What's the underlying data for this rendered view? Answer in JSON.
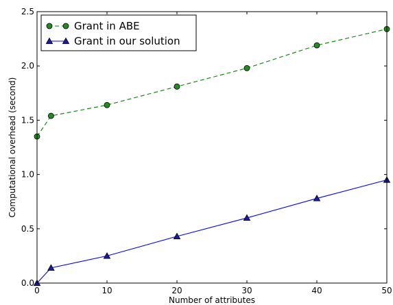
{
  "chart_data": {
    "type": "line",
    "title": "",
    "xlabel": "Number of attributes",
    "ylabel": "Computational overhead (second)",
    "xlim": [
      0,
      50
    ],
    "ylim": [
      0,
      2.5
    ],
    "xticks": [
      "0",
      "10",
      "20",
      "30",
      "40",
      "50"
    ],
    "yticks": [
      "0.0",
      "0.5",
      "1.0",
      "1.5",
      "2.0",
      "2.5"
    ],
    "grid": false,
    "legend_position": "top-left",
    "x": [
      0,
      2,
      10,
      20,
      30,
      40,
      50
    ],
    "series": [
      {
        "name": "Grant in ABE",
        "values": [
          1.35,
          1.54,
          1.64,
          1.81,
          1.98,
          2.19,
          2.34
        ],
        "color": "#008000",
        "marker_color": "#228b22",
        "line_style": "dashed",
        "marker": "circle"
      },
      {
        "name": "Grant in our solution",
        "values": [
          0.0,
          0.14,
          0.25,
          0.43,
          0.6,
          0.78,
          0.95
        ],
        "color": "#0000ff",
        "marker_color": "#1c1c9c",
        "line_style": "solid",
        "marker": "triangle"
      }
    ]
  }
}
